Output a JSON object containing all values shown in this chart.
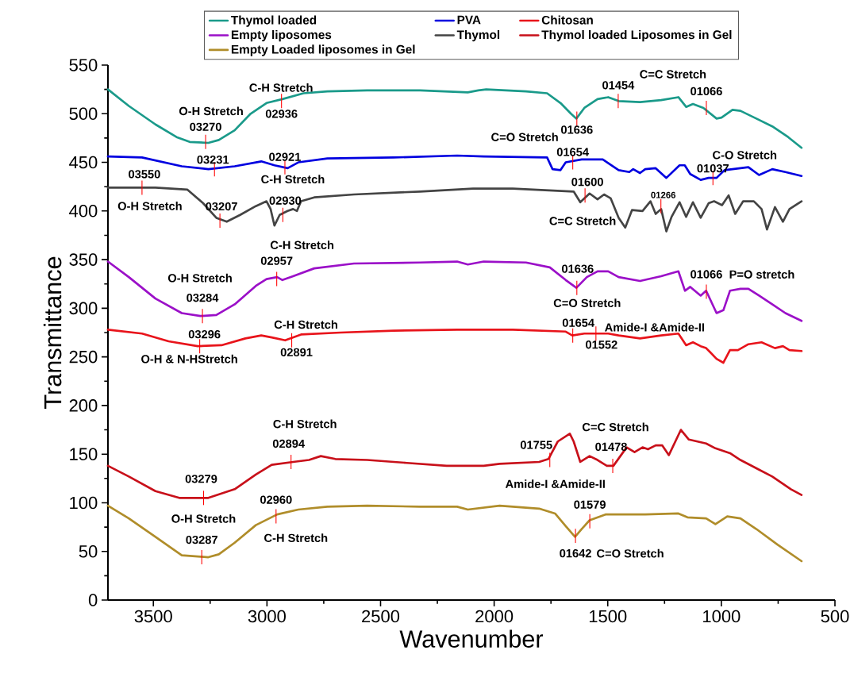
{
  "chart_data": {
    "type": "line",
    "xlabel": "Wavenumber",
    "ylabel": "Transmittance",
    "xlim": [
      3700,
      500
    ],
    "ylim": [
      0,
      550
    ],
    "xticks": [
      3500,
      3000,
      2500,
      2000,
      1500,
      1000,
      500
    ],
    "yticks": [
      0,
      50,
      100,
      150,
      200,
      250,
      300,
      350,
      400,
      450,
      500,
      550
    ],
    "legend": "top",
    "series": [
      {
        "name": "Thymol loaded",
        "color": "#1a9a8a",
        "x": [
          3700,
          3608,
          3491,
          3398,
          3340,
          3258,
          3212,
          3142,
          3072,
          3002,
          2932,
          2839,
          2734,
          2559,
          2326,
          2116,
          2070,
          2035,
          1860,
          1767,
          1708,
          1662,
          1638,
          1603,
          1545,
          1498,
          1452,
          1358,
          1265,
          1189,
          1155,
          1125,
          1079,
          1021,
          999,
          951,
          916,
          846,
          776,
          706,
          647
        ],
        "values": [
          525,
          508,
          489,
          476,
          471,
          470,
          473,
          483,
          500,
          511,
          515,
          521,
          523,
          524,
          524,
          522,
          524,
          525,
          523,
          521,
          511,
          500,
          495,
          506,
          515,
          517,
          513,
          512,
          514,
          517,
          507,
          510,
          506,
          495,
          496,
          504,
          503,
          495,
          487,
          476,
          465
        ]
      },
      {
        "name": "PVA",
        "color": "#0000e0",
        "x": [
          3700,
          3550,
          3375,
          3258,
          3142,
          3025,
          2967,
          2909,
          2862,
          2734,
          2442,
          2163,
          2046,
          1767,
          1743,
          1708,
          1685,
          1615,
          1522,
          1452,
          1405,
          1388,
          1358,
          1335,
          1289,
          1242,
          1184,
          1161,
          1137,
          1091,
          1056,
          1021,
          986,
          881,
          834,
          776,
          718,
          647
        ],
        "values": [
          456,
          455,
          446,
          443,
          446,
          451,
          447,
          444,
          450,
          454,
          455,
          457,
          456,
          455,
          443,
          442,
          450,
          453,
          453,
          442,
          440,
          443,
          439,
          443,
          444,
          434,
          447,
          447,
          438,
          432,
          434,
          434,
          442,
          445,
          437,
          443,
          440,
          436
        ]
      },
      {
        "name": "Chitosan",
        "color": "#e8141b",
        "x": [
          3700,
          3550,
          3433,
          3305,
          3200,
          3095,
          3025,
          2979,
          2920,
          2850,
          2676,
          2442,
          2163,
          2046,
          1918,
          1685,
          1656,
          1603,
          1498,
          1452,
          1358,
          1265,
          1189,
          1155,
          1125,
          1091,
          1067,
          1050,
          1021,
          991,
          962,
          927,
          881,
          823,
          764,
          729,
          700,
          647
        ],
        "values": [
          278,
          274,
          266,
          261,
          262,
          269,
          272,
          270,
          267,
          273,
          275,
          277,
          278,
          278,
          278,
          276,
          272,
          274,
          274,
          272,
          269,
          272,
          274,
          262,
          265,
          261,
          259,
          255,
          248,
          244,
          257,
          257,
          263,
          265,
          259,
          261,
          257,
          256
        ]
      },
      {
        "name": "Empty liposomes",
        "color": "#9b10c8",
        "x": [
          3700,
          3608,
          3491,
          3375,
          3293,
          3223,
          3142,
          3049,
          3002,
          2955,
          2932,
          2885,
          2792,
          2617,
          2326,
          2163,
          2116,
          2046,
          1860,
          1755,
          1685,
          1638,
          1592,
          1545,
          1498,
          1452,
          1358,
          1265,
          1189,
          1160,
          1137,
          1091,
          1067,
          1021,
          991,
          962,
          916,
          881,
          834,
          776,
          718,
          647
        ],
        "values": [
          348,
          332,
          310,
          295,
          292,
          293,
          304,
          323,
          330,
          332,
          329,
          333,
          341,
          346,
          347,
          348,
          345,
          348,
          347,
          342,
          329,
          321,
          332,
          338,
          338,
          332,
          328,
          333,
          338,
          318,
          322,
          313,
          318,
          295,
          298,
          318,
          320,
          320,
          313,
          304,
          295,
          287
        ]
      },
      {
        "name": "Thymol",
        "color": "#444444",
        "x": [
          3700,
          3491,
          3351,
          3281,
          3223,
          3177,
          3118,
          3049,
          3002,
          2984,
          2967,
          2944,
          2909,
          2885,
          2868,
          2850,
          2792,
          2617,
          2326,
          2093,
          1918,
          1650,
          1621,
          1580,
          1545,
          1516,
          1487,
          1452,
          1423,
          1393,
          1347,
          1312,
          1289,
          1265,
          1242,
          1219,
          1184,
          1155,
          1125,
          1091,
          1056,
          1032,
          997,
          968,
          939,
          904,
          857,
          823,
          799,
          764,
          729,
          700,
          647
        ],
        "values": [
          424,
          424,
          422,
          408,
          393,
          389,
          396,
          405,
          410,
          402,
          385,
          396,
          400,
          402,
          400,
          410,
          414,
          417,
          420,
          423,
          423,
          420,
          409,
          418,
          412,
          417,
          413,
          393,
          383,
          401,
          400,
          410,
          397,
          402,
          379,
          394,
          409,
          394,
          409,
          393,
          408,
          410,
          406,
          416,
          397,
          410,
          410,
          402,
          381,
          404,
          389,
          402,
          410
        ]
      },
      {
        "name": "Thymol loaded Liposomes in Gel",
        "color": "#c8101a",
        "x": [
          3700,
          3608,
          3491,
          3386,
          3258,
          3142,
          3049,
          2979,
          2885,
          2815,
          2763,
          2699,
          2559,
          2384,
          2209,
          2046,
          1976,
          1802,
          1761,
          1743,
          1720,
          1667,
          1650,
          1621,
          1580,
          1545,
          1504,
          1475,
          1417,
          1382,
          1347,
          1323,
          1289,
          1260,
          1231,
          1178,
          1143,
          1067,
          1026,
          962,
          916,
          834,
          776,
          694,
          647
        ],
        "values": [
          138,
          127,
          112,
          105,
          105,
          114,
          129,
          139,
          142,
          144,
          148,
          145,
          144,
          141,
          138,
          138,
          140,
          142,
          145,
          153,
          163,
          171,
          163,
          142,
          148,
          144,
          138,
          138,
          157,
          152,
          157,
          155,
          159,
          159,
          149,
          175,
          165,
          161,
          156,
          151,
          144,
          134,
          127,
          114,
          108
        ]
      },
      {
        "name": "Empty Loaded liposomes in Gel",
        "color": "#b08d2a",
        "x": [
          3700,
          3608,
          3491,
          3375,
          3258,
          3212,
          3142,
          3049,
          2955,
          2862,
          2734,
          2559,
          2326,
          2163,
          2116,
          2046,
          1976,
          1802,
          1732,
          1685,
          1644,
          1615,
          1580,
          1510,
          1335,
          1189,
          1149,
          1067,
          1026,
          974,
          916,
          846,
          753,
          647
        ],
        "values": [
          97,
          84,
          65,
          46,
          44,
          47,
          59,
          77,
          88,
          93,
          96,
          97,
          96,
          96,
          93,
          95,
          97,
          94,
          89,
          76,
          65,
          73,
          82,
          88,
          88,
          89,
          85,
          84,
          78,
          86,
          84,
          73,
          57,
          40
        ]
      }
    ],
    "annotations": [
      "C-H Stretch",
      "O-H Stretch",
      {
        "text": "03270",
        "x": 3270,
        "y": 471
      },
      {
        "text": "02936",
        "x": 2936,
        "y": 513
      },
      {
        "text": "01636",
        "x": 1636,
        "y": 495
      },
      {
        "text": "01454",
        "x": 1454,
        "y": 513
      },
      "C=C Stretch",
      {
        "text": "01066",
        "x": 1066,
        "y": 506
      },
      "C=O Stretch",
      {
        "text": "01654",
        "x": 1654,
        "y": 450
      },
      {
        "text": "03231",
        "x": 3231,
        "y": 443
      },
      {
        "text": "02921",
        "x": 2921,
        "y": 445
      },
      "C-H Stretch",
      "C-O Stretch",
      {
        "text": "01037",
        "x": 1037,
        "y": 434
      },
      {
        "text": "03550",
        "x": 3550,
        "y": 424
      },
      "O-H Stretch",
      {
        "text": "03207",
        "x": 3207,
        "y": 390
      },
      {
        "text": "02930",
        "x": 2930,
        "y": 396
      },
      {
        "text": "01600",
        "x": 1600,
        "y": 416
      },
      "C=C Stretch",
      {
        "text": "01266",
        "x": 1266,
        "y": 405
      },
      "C-H Stretch",
      {
        "text": "02957",
        "x": 2957,
        "y": 330
      },
      "O-H Stretch",
      {
        "text": "03284",
        "x": 3284,
        "y": 292
      },
      {
        "text": "01636",
        "x": 1636,
        "y": 321
      },
      "C=O Stretch",
      {
        "text": "01066",
        "x": 1066,
        "y": 317
      },
      "P=O stretch",
      {
        "text": "03296",
        "x": 3296,
        "y": 261
      },
      "O-H & N-HStretch",
      "C-H Stretch",
      {
        "text": "02891",
        "x": 2891,
        "y": 267
      },
      {
        "text": "01654",
        "x": 1654,
        "y": 272
      },
      "Amide-I &Amide-II",
      {
        "text": "01552",
        "x": 1552,
        "y": 274
      },
      "C-H Stretch",
      {
        "text": "02894",
        "x": 2894,
        "y": 142
      },
      {
        "text": "03279",
        "x": 3279,
        "y": 105
      },
      "O-H Stretch",
      {
        "text": "01755",
        "x": 1755,
        "y": 144
      },
      "Amide-I &Amide-II",
      "C=C Stretch",
      {
        "text": "01478",
        "x": 1478,
        "y": 138
      },
      {
        "text": "02960",
        "x": 2960,
        "y": 86
      },
      "C-H Stretch",
      {
        "text": "03287",
        "x": 3287,
        "y": 44
      },
      {
        "text": "01642",
        "x": 1642,
        "y": 66
      },
      "C=O Stretch",
      {
        "text": "01579",
        "x": 1579,
        "y": 81
      }
    ]
  }
}
